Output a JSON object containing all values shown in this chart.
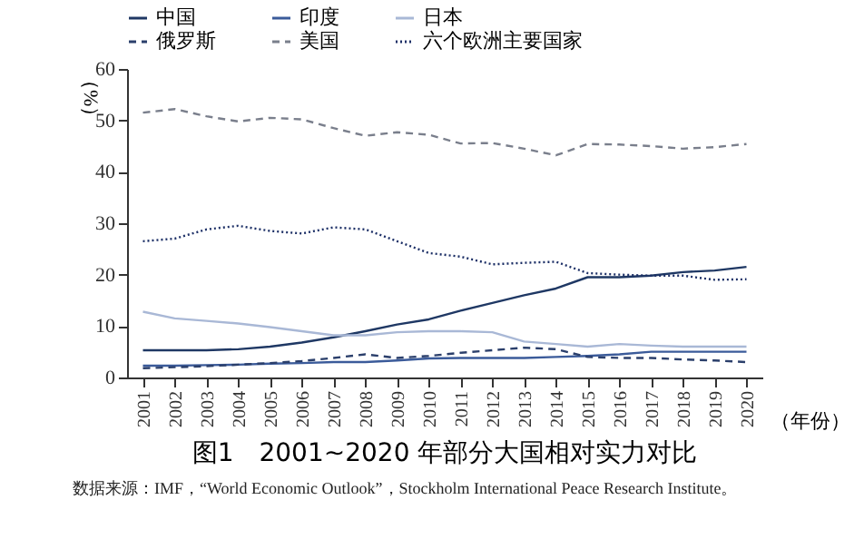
{
  "chart_data": {
    "type": "line",
    "title": "图1　2001~2020 年部分大国相对实力对比",
    "ylabel": "（%）",
    "xlabel": "（年份）",
    "annotations": [
      "数据来源：IMF，“World Economic Outlook”，Stockholm International Peace Research Institute。"
    ],
    "categories": [
      "2001",
      "2002",
      "2003",
      "2004",
      "2005",
      "2006",
      "2007",
      "2008",
      "2009",
      "2010",
      "2011",
      "2012",
      "2013",
      "2014",
      "2015",
      "2016",
      "2017",
      "2018",
      "2019",
      "2020"
    ],
    "ylim": [
      0,
      60
    ],
    "yticks": [
      0,
      10,
      20,
      30,
      40,
      50,
      60
    ],
    "grid": false,
    "legend": "top",
    "marker": "none",
    "series": [
      {
        "name": "中国",
        "color": "#1f3864",
        "line_style": "solid",
        "values": [
          5.3,
          5.3,
          5.3,
          5.5,
          6.0,
          6.8,
          7.8,
          9.0,
          10.3,
          11.3,
          13.0,
          14.5,
          16.0,
          17.3,
          19.5,
          19.5,
          19.8,
          20.5,
          20.8,
          21.5
        ]
      },
      {
        "name": "印度",
        "color": "#3b5b9a",
        "line_style": "solid",
        "values": [
          2.3,
          2.3,
          2.4,
          2.5,
          2.7,
          2.8,
          3.0,
          3.0,
          3.3,
          3.7,
          3.8,
          3.8,
          3.8,
          4.0,
          4.2,
          4.5,
          5.0,
          5.0,
          5.0,
          5.0
        ]
      },
      {
        "name": "日本",
        "color": "#a9b8d6",
        "line_style": "solid",
        "values": [
          12.8,
          11.5,
          11.0,
          10.5,
          9.8,
          9.0,
          8.2,
          8.2,
          8.8,
          9.0,
          9.0,
          8.8,
          7.0,
          6.5,
          6.0,
          6.5,
          6.2,
          6.0,
          6.0,
          6.0
        ]
      },
      {
        "name": "俄罗斯",
        "color": "#2b3f6b",
        "line_style": "dashed",
        "values": [
          1.8,
          2.0,
          2.2,
          2.5,
          2.8,
          3.2,
          3.8,
          4.5,
          3.8,
          4.2,
          4.8,
          5.3,
          5.8,
          5.5,
          4.0,
          3.8,
          3.8,
          3.5,
          3.3,
          3.0
        ]
      },
      {
        "name": "美国",
        "color": "#7a7f8c",
        "line_style": "dashed",
        "values": [
          51.5,
          52.2,
          50.8,
          49.8,
          50.5,
          50.2,
          48.5,
          47.0,
          47.7,
          47.2,
          45.5,
          45.6,
          44.5,
          43.2,
          45.4,
          45.3,
          45.0,
          44.5,
          44.8,
          45.4
        ]
      },
      {
        "name": "六个欧洲主要国家",
        "color": "#1c2f66",
        "line_style": "dotted",
        "values": [
          26.5,
          27.0,
          28.8,
          29.5,
          28.5,
          28.0,
          29.2,
          28.8,
          26.5,
          24.2,
          23.5,
          22.0,
          22.3,
          22.5,
          20.3,
          20.0,
          19.8,
          19.8,
          19.0,
          19.1
        ]
      }
    ]
  }
}
